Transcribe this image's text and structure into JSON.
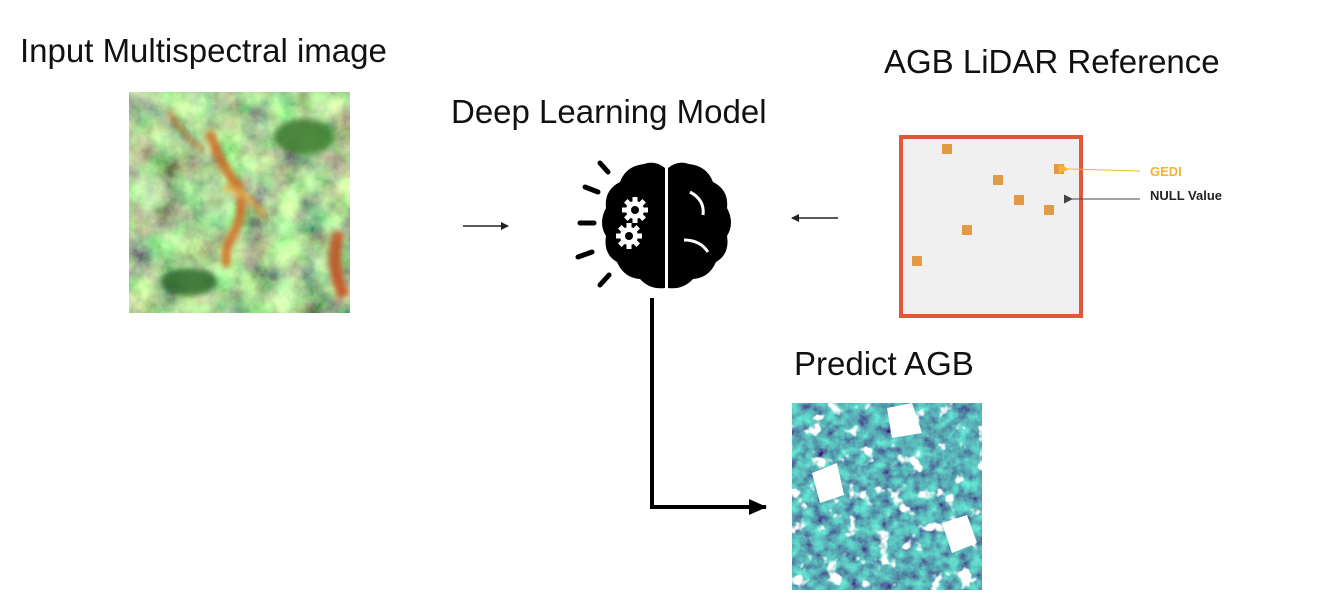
{
  "labels": {
    "input": "Input Multispectral image",
    "model": "Deep Learning Model",
    "reference": "AGB LiDAR Reference",
    "predict": "Predict AGB"
  },
  "annotations": {
    "gedi": "GEDI",
    "null_value": "NULL Value"
  },
  "colors": {
    "reference_border": "#e0573a",
    "gedi_point": "#e39a45",
    "gedi_text": "#f2b531"
  },
  "icons": {
    "model": "brain-gears-icon"
  }
}
